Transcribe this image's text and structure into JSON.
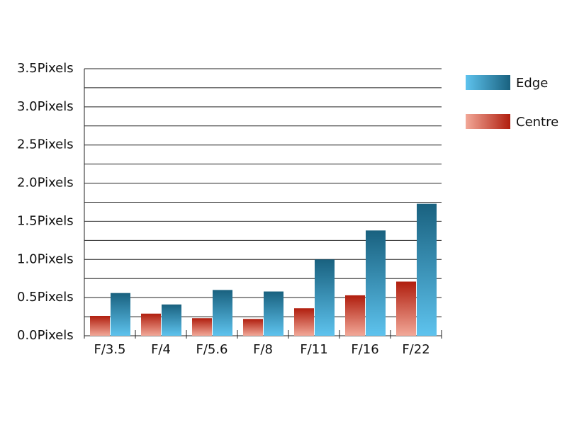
{
  "chart_data": {
    "type": "bar",
    "categories": [
      "F/3.5",
      "F/4",
      "F/5.6",
      "F/8",
      "F/11",
      "F/16",
      "F/22"
    ],
    "series": [
      {
        "name": "Centre",
        "color": "#b01e0e",
        "color_light": "#f2a898",
        "values": [
          0.26,
          0.29,
          0.23,
          0.22,
          0.36,
          0.53,
          0.71
        ]
      },
      {
        "name": "Edge",
        "color": "#19617f",
        "color_light": "#5ec3ee",
        "values": [
          0.56,
          0.41,
          0.6,
          0.58,
          1.0,
          1.38,
          1.73
        ]
      }
    ],
    "legend_order": [
      1,
      0
    ],
    "ylim": [
      0,
      3.5
    ],
    "yticks": [
      {
        "value": 0,
        "label": "0.0Pixels"
      },
      {
        "value": 0.5,
        "label": "0.5Pixels"
      },
      {
        "value": 1,
        "label": "1.0Pixels"
      },
      {
        "value": 1.5,
        "label": "1.5Pixels"
      },
      {
        "value": 2,
        "label": "2.0Pixels"
      },
      {
        "value": 2.5,
        "label": "2.5Pixels"
      },
      {
        "value": 3,
        "label": "3.0Pixels"
      },
      {
        "value": 3.5,
        "label": "3.5Pixels"
      }
    ],
    "minor_yticks": [
      0.25,
      0.75,
      1.25,
      1.75,
      2.25,
      2.75,
      3.25
    ],
    "grid": true
  }
}
